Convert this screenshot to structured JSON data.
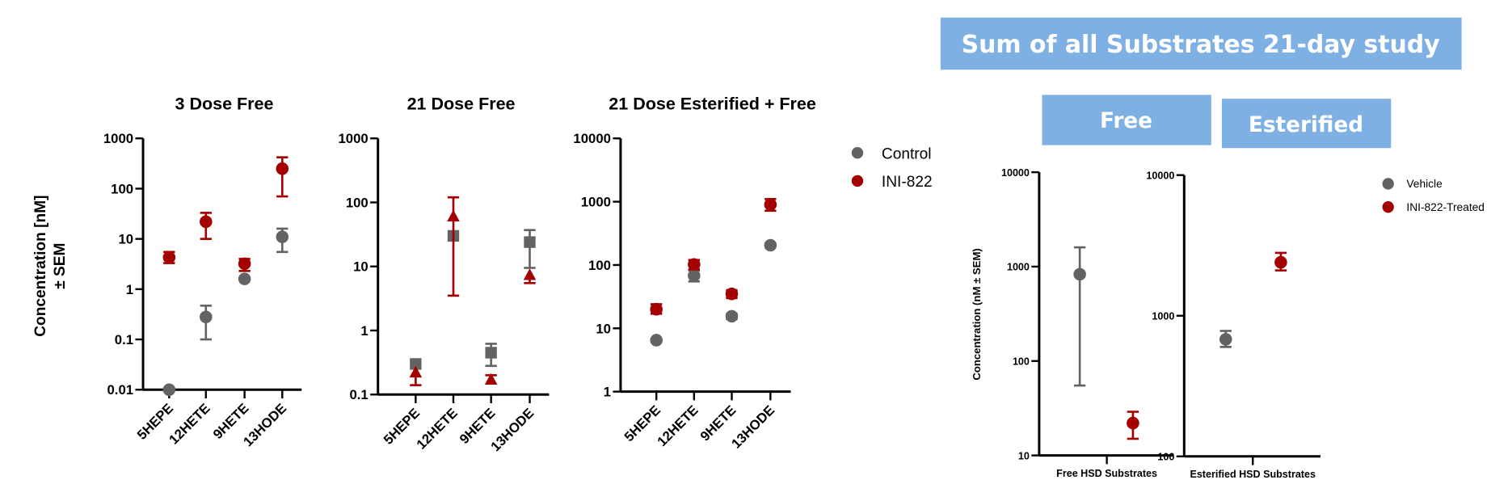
{
  "banners": {
    "main": "Sum of all Substrates 21-day study",
    "free": "Free",
    "esterified": "Esterified"
  },
  "ylabels": {
    "left_line1": "Concentration [nM]",
    "left_line2": "± SEM",
    "right": "Concentration (nM ± SEM)"
  },
  "colors": {
    "control": "#636363",
    "treated": "#a50000",
    "banner": "#7fb0e3"
  },
  "chart_data": [
    {
      "type": "scatter",
      "title": "3 Dose Free",
      "yscale": "log",
      "ylim": [
        0.01,
        1000
      ],
      "yticks": [
        "1000",
        "100",
        "10",
        "1",
        "0.1",
        "0.01"
      ],
      "categories": [
        "5HEPE",
        "12HETE",
        "9HETE",
        "13HODE"
      ],
      "series": [
        {
          "name": "Control",
          "marker": "circle",
          "color": "#636363",
          "values": [
            0.01,
            0.28,
            1.6,
            11
          ],
          "err_low": [
            null,
            0.1,
            null,
            5.5
          ],
          "err_high": [
            null,
            0.47,
            null,
            16
          ]
        },
        {
          "name": "INI-822",
          "marker": "circle",
          "color": "#a50000",
          "values": [
            4.3,
            22,
            3.2,
            250
          ],
          "err_low": [
            3.3,
            10,
            2.3,
            70
          ],
          "err_high": [
            5.5,
            33,
            4.0,
            420
          ]
        }
      ]
    },
    {
      "type": "scatter",
      "title": "21 Dose Free",
      "yscale": "log",
      "ylim": [
        0.1,
        1000
      ],
      "yticks": [
        "1000",
        "100",
        "10",
        "1",
        "0.1"
      ],
      "categories": [
        "5HEPE",
        "12HETE",
        "9HETE",
        "13HODE"
      ],
      "series": [
        {
          "name": "Control",
          "marker": "square",
          "color": "#636363",
          "values": [
            0.3,
            30,
            0.45,
            24
          ],
          "err_low": [
            null,
            null,
            0.28,
            9.5
          ],
          "err_high": [
            null,
            null,
            0.62,
            37
          ]
        },
        {
          "name": "INI-822",
          "marker": "triangle",
          "color": "#a50000",
          "values": [
            0.22,
            60,
            0.17,
            7.3
          ],
          "err_low": [
            0.14,
            3.5,
            null,
            5.5
          ],
          "err_high": [
            null,
            120,
            0.2,
            null
          ]
        }
      ]
    },
    {
      "type": "scatter",
      "title": "21 Dose Esterified + Free",
      "yscale": "log",
      "ylim": [
        1,
        10000
      ],
      "yticks": [
        "10000",
        "1000",
        "100",
        "10",
        "1"
      ],
      "categories": [
        "5HEPE",
        "12HETE",
        "9HETE",
        "13HODE"
      ],
      "legend": {
        "position": "right",
        "entries": [
          "Control",
          "INI-822"
        ]
      },
      "series": [
        {
          "name": "Control",
          "marker": "circle",
          "color": "#636363",
          "values": [
            6.5,
            68,
            15.5,
            205
          ],
          "err_low": [
            null,
            55,
            14,
            190
          ],
          "err_high": [
            null,
            82,
            17,
            220
          ]
        },
        {
          "name": "INI-822",
          "marker": "circle",
          "color": "#a50000",
          "values": [
            20,
            102,
            35,
            900
          ],
          "err_low": [
            17,
            85,
            30,
            720
          ],
          "err_high": [
            24,
            120,
            40,
            1100
          ]
        }
      ]
    },
    {
      "type": "scatter",
      "title": "",
      "yscale": "log",
      "ylim": [
        10,
        10000
      ],
      "yticks": [
        "10000",
        "1000",
        "100",
        "10"
      ],
      "categories": [
        "Free HSD Substrates"
      ],
      "series": [
        {
          "name": "Vehicle",
          "marker": "circle",
          "color": "#636363",
          "values": [
            830
          ],
          "err_low": [
            55
          ],
          "err_high": [
            1600
          ]
        },
        {
          "name": "INI-822-Treated",
          "marker": "circle",
          "color": "#a50000",
          "values": [
            22
          ],
          "err_low": [
            15
          ],
          "err_high": [
            29
          ]
        }
      ]
    },
    {
      "type": "scatter",
      "title": "",
      "yscale": "log",
      "ylim": [
        100,
        10000
      ],
      "yticks": [
        "10000",
        "1000",
        "100"
      ],
      "categories": [
        "Esterified HSD Substrates"
      ],
      "legend": {
        "position": "right",
        "entries": [
          "Vehicle",
          "INI-822-Treated"
        ]
      },
      "series": [
        {
          "name": "Vehicle",
          "marker": "circle",
          "color": "#636363",
          "values": [
            680
          ],
          "err_low": [
            600
          ],
          "err_high": [
            780
          ]
        },
        {
          "name": "INI-822-Treated",
          "marker": "circle",
          "color": "#a50000",
          "values": [
            2400
          ],
          "err_low": [
            2100
          ],
          "err_high": [
            2800
          ]
        }
      ]
    }
  ]
}
